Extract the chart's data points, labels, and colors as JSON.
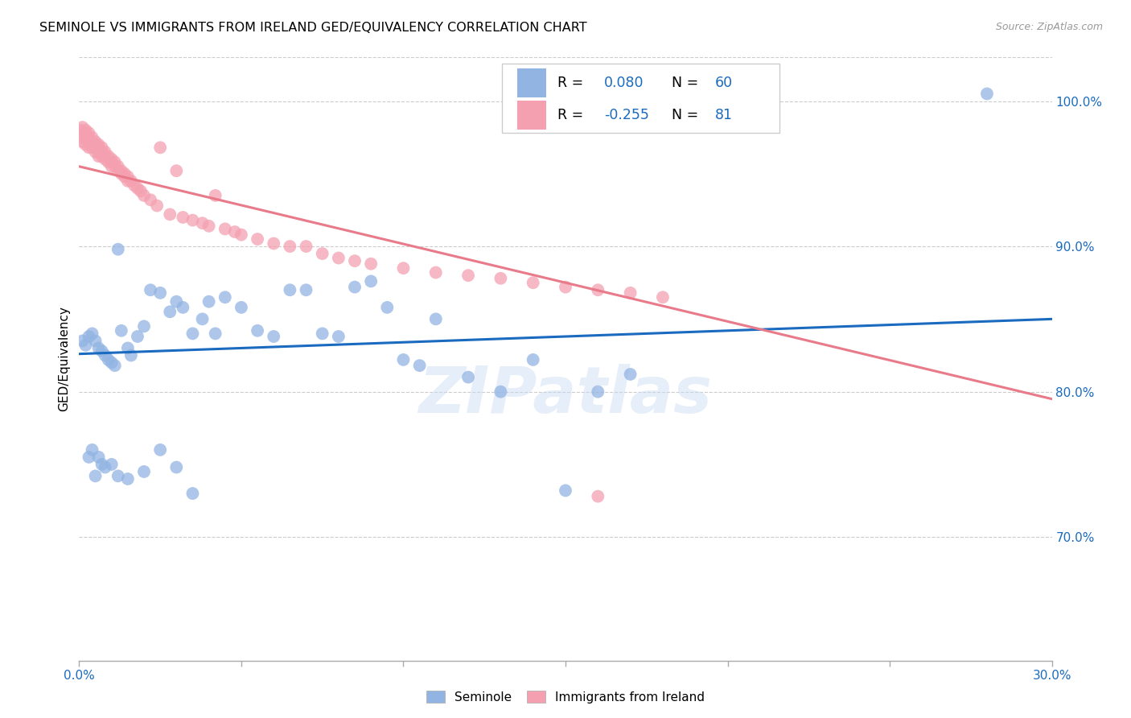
{
  "title": "SEMINOLE VS IMMIGRANTS FROM IRELAND GED/EQUIVALENCY CORRELATION CHART",
  "source": "Source: ZipAtlas.com",
  "ylabel": "GED/Equivalency",
  "xlim": [
    0.0,
    0.3
  ],
  "ylim": [
    0.615,
    1.03
  ],
  "legend_r_seminole": "0.080",
  "legend_n_seminole": "60",
  "legend_r_ireland": "-0.255",
  "legend_n_ireland": "81",
  "seminole_color": "#92b4e3",
  "ireland_color": "#f4a0b0",
  "seminole_line_color": "#1a6bbf",
  "ireland_line_color": "#e87a8a",
  "watermark": "ZIPatlas",
  "x_ticks": [
    0.0,
    0.05,
    0.1,
    0.15,
    0.2,
    0.25,
    0.3
  ],
  "y_ticks": [
    0.7,
    0.8,
    0.9,
    1.0
  ],
  "y_tick_labels": [
    "70.0%",
    "80.0%",
    "90.0%",
    "100.0%"
  ],
  "seminole_line_x": [
    0.0,
    0.3
  ],
  "seminole_line_y": [
    0.826,
    0.85
  ],
  "ireland_line_x": [
    0.0,
    0.3
  ],
  "ireland_line_y": [
    0.955,
    0.795
  ]
}
